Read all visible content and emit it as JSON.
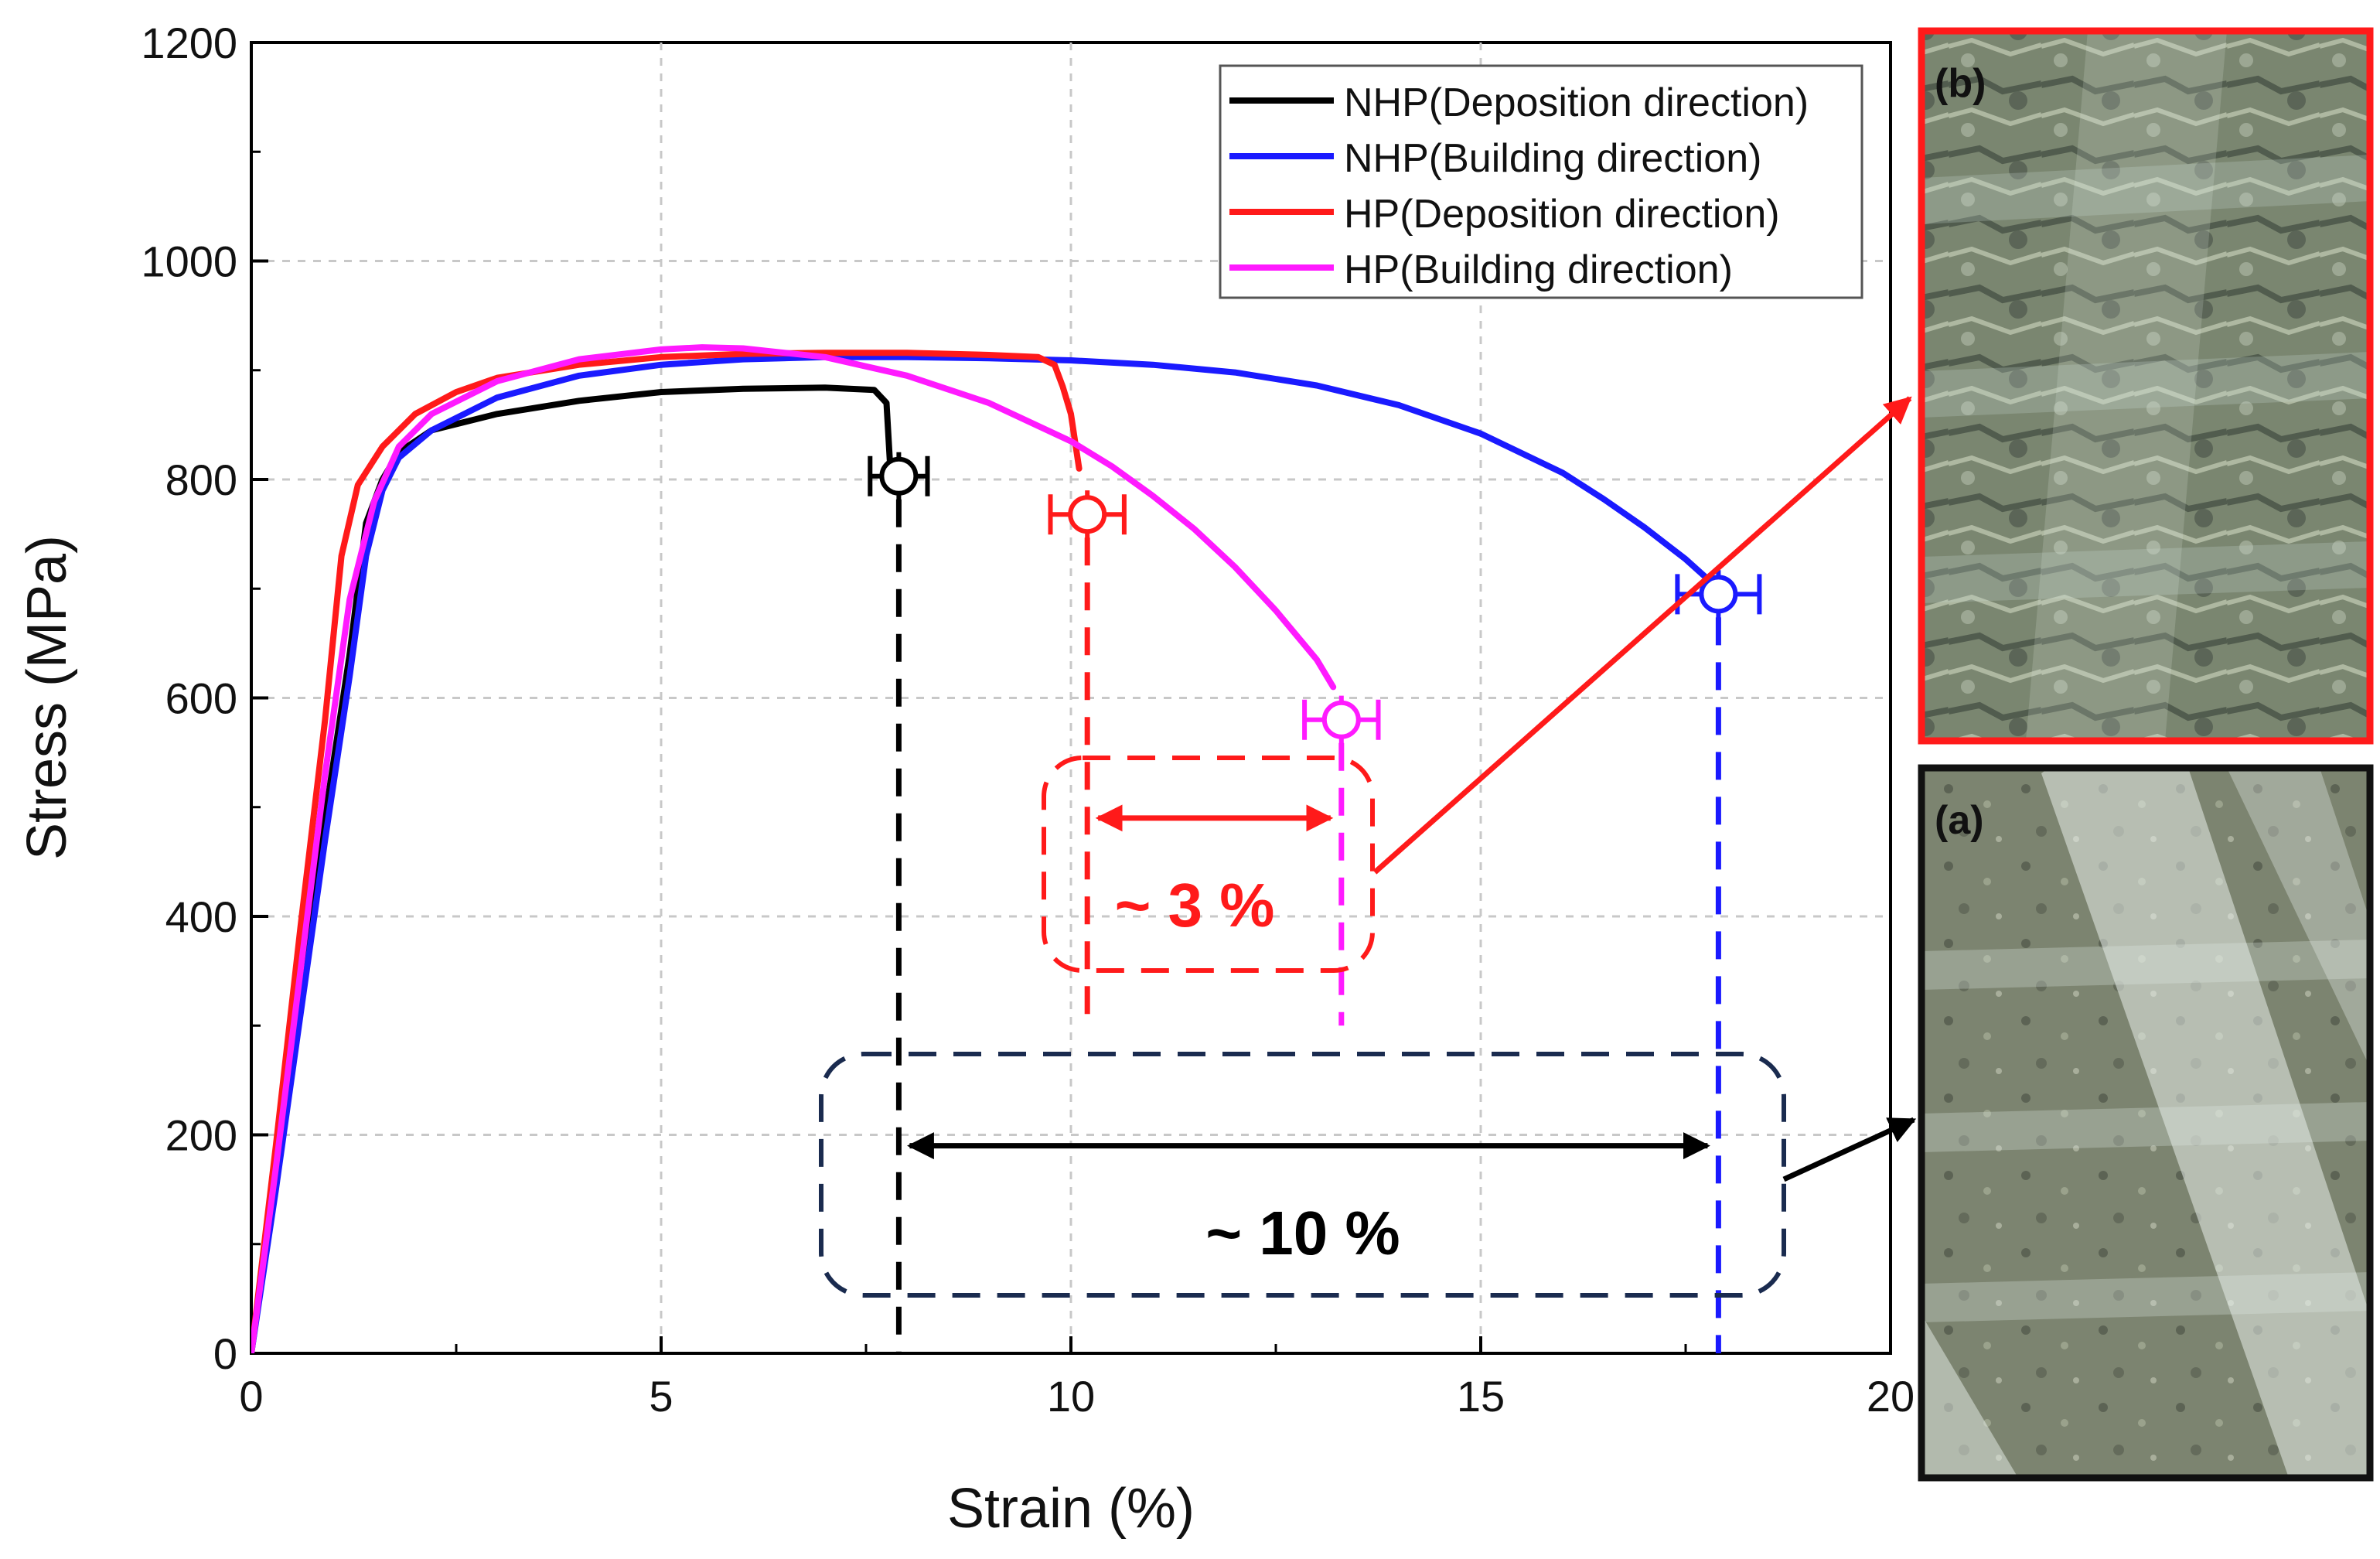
{
  "chart_data": {
    "type": "line",
    "title": "",
    "xlabel": "Strain (%)",
    "ylabel": "Stress (MPa)",
    "xlim": [
      0,
      20
    ],
    "ylim": [
      0,
      1200
    ],
    "xticks": [
      "0",
      "5",
      "10",
      "15",
      "20"
    ],
    "yticks": [
      "0",
      "200",
      "400",
      "600",
      "800",
      "1000",
      "1200"
    ],
    "grid": true,
    "legend_position": "top-right",
    "series": [
      {
        "name": "NHP(Deposition direction)",
        "color": "#000000",
        "x": [
          0,
          0.3,
          0.6,
          0.9,
          1.2,
          1.4,
          1.6,
          1.8,
          2.2,
          3,
          4,
          5,
          6,
          7,
          7.6,
          7.75,
          7.8
        ],
        "y": [
          0,
          160,
          330,
          490,
          640,
          760,
          800,
          825,
          845,
          860,
          872,
          880,
          883,
          884,
          882,
          870,
          805
        ],
        "fracture_point": {
          "x": 7.9,
          "y": 803,
          "xerr": 0.35,
          "yerr": 22
        }
      },
      {
        "name": "NHP(Building direction)",
        "color": "#1a1aff",
        "x": [
          0,
          0.3,
          0.6,
          0.9,
          1.2,
          1.4,
          1.6,
          1.8,
          2.2,
          3,
          4,
          5,
          6,
          7,
          8,
          9,
          10,
          11,
          12,
          13,
          14,
          15,
          16,
          16.5,
          17,
          17.5,
          17.9
        ],
        "y": [
          0,
          150,
          310,
          470,
          620,
          730,
          790,
          820,
          845,
          875,
          895,
          905,
          910,
          912,
          912,
          911,
          909,
          905,
          898,
          886,
          868,
          842,
          806,
          782,
          756,
          727,
          700
        ],
        "fracture_point": {
          "x": 17.9,
          "y": 695,
          "xerr": 0.5,
          "yerr": 22
        }
      },
      {
        "name": "HP(Deposition direction)",
        "color": "#ff1a1a",
        "x": [
          0,
          0.3,
          0.6,
          0.9,
          1.1,
          1.3,
          1.6,
          2,
          2.5,
          3,
          4,
          5,
          6,
          7,
          8,
          9,
          9.6,
          9.8,
          9.9,
          10,
          10.1
        ],
        "y": [
          0,
          190,
          390,
          580,
          730,
          795,
          830,
          860,
          880,
          893,
          905,
          912,
          915,
          916,
          916,
          914,
          912,
          905,
          885,
          860,
          810
        ],
        "fracture_point": {
          "x": 10.2,
          "y": 768,
          "xerr": 0.45,
          "yerr": 22
        }
      },
      {
        "name": "HP(Building direction)",
        "color": "#ff1aff",
        "x": [
          0,
          0.3,
          0.6,
          0.9,
          1.2,
          1.5,
          1.8,
          2.2,
          3,
          4,
          5,
          5.5,
          6,
          7,
          8,
          9,
          10,
          10.5,
          11,
          11.5,
          12,
          12.5,
          13,
          13.2
        ],
        "y": [
          0,
          170,
          350,
          530,
          690,
          780,
          830,
          860,
          890,
          910,
          919,
          921,
          920,
          912,
          895,
          870,
          835,
          812,
          785,
          755,
          720,
          680,
          635,
          610
        ],
        "fracture_point": {
          "x": 13.3,
          "y": 580,
          "xerr": 0.45,
          "yerr": 22
        }
      }
    ],
    "annotations": [
      {
        "text": "~ 3 %",
        "color": "#ff1a1a",
        "from_x": 10.2,
        "to_x": 13.3,
        "arrow_y": 490
      },
      {
        "text": "~ 10 %",
        "color": "#000000",
        "from_x": 7.9,
        "to_x": 17.9,
        "arrow_y": 190
      }
    ]
  },
  "micrographs": [
    {
      "label": "(b)",
      "frame_color": "#ff1a1a"
    },
    {
      "label": "(a)",
      "frame_color": "#111111"
    }
  ]
}
